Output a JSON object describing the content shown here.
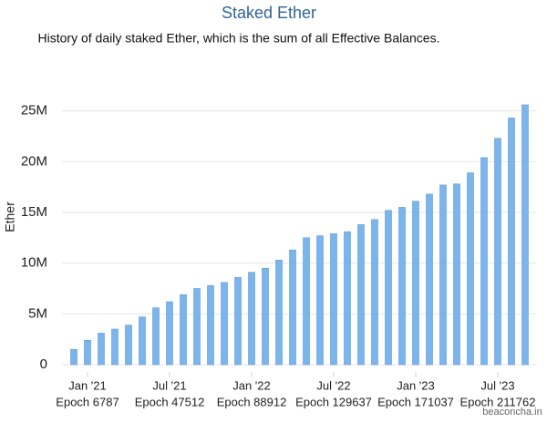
{
  "chart_data": {
    "type": "bar",
    "title": "Staked Ether",
    "subtitle": "History of daily staked Ether, which is the sum of all Effective Balances.",
    "y_label": "Ether",
    "categories": [
      null,
      "Jan '21",
      null,
      null,
      null,
      null,
      null,
      "Jul '21",
      null,
      null,
      null,
      null,
      null,
      "Jan '22",
      null,
      null,
      null,
      null,
      null,
      "Jul '22",
      null,
      null,
      null,
      null,
      null,
      "Jan '23",
      null,
      null,
      null,
      null,
      null,
      "Jul '23",
      null,
      null
    ],
    "category_epochs": [
      null,
      "Epoch 6787",
      null,
      null,
      null,
      null,
      null,
      "Epoch 47512",
      null,
      null,
      null,
      null,
      null,
      "Epoch 88912",
      null,
      null,
      null,
      null,
      null,
      "Epoch 129637",
      null,
      null,
      null,
      null,
      null,
      "Epoch 171037",
      null,
      null,
      null,
      null,
      null,
      "Epoch 211762",
      null,
      null
    ],
    "values": [
      1500000,
      2400000,
      3100000,
      3500000,
      3900000,
      4700000,
      5600000,
      6200000,
      6900000,
      7500000,
      7800000,
      8100000,
      8600000,
      9100000,
      9500000,
      10300000,
      11300000,
      12500000,
      12700000,
      12900000,
      13100000,
      13800000,
      14300000,
      15200000,
      15500000,
      16100000,
      16800000,
      17700000,
      17800000,
      18900000,
      20400000,
      22300000,
      24300000,
      25600000
    ],
    "color": "#7cb5ec",
    "ylim": [
      0,
      30000000
    ],
    "yticks": [
      0,
      {
        "value": 5000000,
        "label": "5M"
      },
      {
        "value": 10000000,
        "label": "10M"
      },
      {
        "value": 15000000,
        "label": "15M"
      },
      {
        "value": 20000000,
        "label": "20M"
      },
      {
        "value": 25000000,
        "label": "25M"
      }
    ],
    "grid": true,
    "watermark": "beaconcha.in"
  }
}
